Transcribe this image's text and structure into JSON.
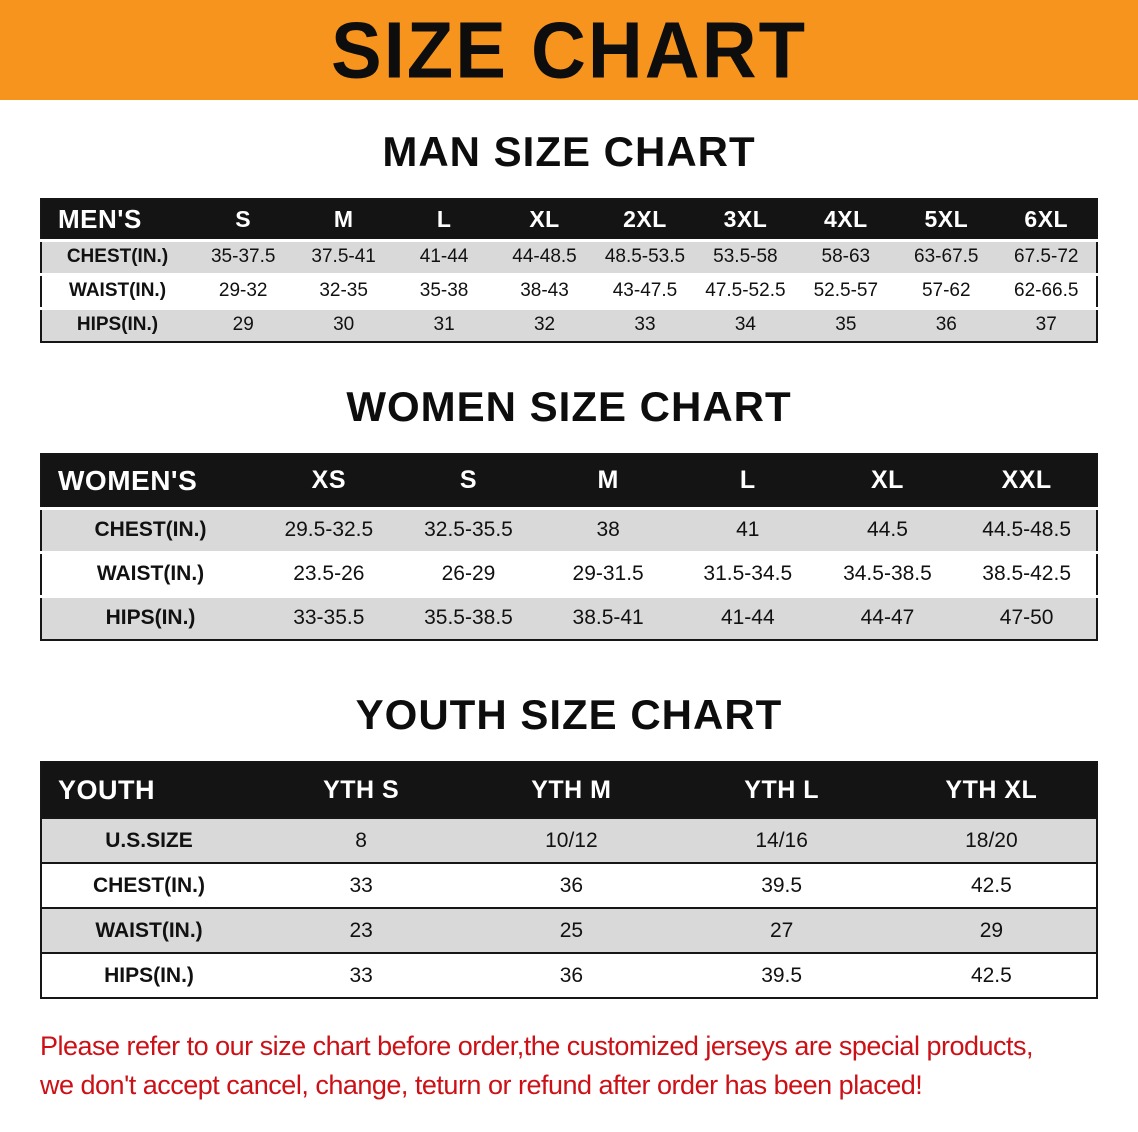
{
  "banner": {
    "title": "SIZE CHART"
  },
  "men": {
    "heading": "MAN SIZE CHART",
    "table": {
      "header": [
        "MEN'S",
        "S",
        "M",
        "L",
        "XL",
        "2XL",
        "3XL",
        "4XL",
        "5XL",
        "6XL"
      ],
      "rows": [
        [
          "CHEST(IN.)",
          "35-37.5",
          "37.5-41",
          "41-44",
          "44-48.5",
          "48.5-53.5",
          "53.5-58",
          "58-63",
          "63-67.5",
          "67.5-72"
        ],
        [
          "WAIST(IN.)",
          "29-32",
          "32-35",
          "35-38",
          "38-43",
          "43-47.5",
          "47.5-52.5",
          "52.5-57",
          "57-62",
          "62-66.5"
        ],
        [
          "HIPS(IN.)",
          "29",
          "30",
          "31",
          "32",
          "33",
          "34",
          "35",
          "36",
          "37"
        ]
      ]
    }
  },
  "women": {
    "heading": "WOMEN SIZE CHART",
    "table": {
      "header": [
        "WOMEN'S",
        "XS",
        "S",
        "M",
        "L",
        "XL",
        "XXL"
      ],
      "rows": [
        [
          "CHEST(IN.)",
          "29.5-32.5",
          "32.5-35.5",
          "38",
          "41",
          "44.5",
          "44.5-48.5"
        ],
        [
          "WAIST(IN.)",
          "23.5-26",
          "26-29",
          "29-31.5",
          "31.5-34.5",
          "34.5-38.5",
          "38.5-42.5"
        ],
        [
          "HIPS(IN.)",
          "33-35.5",
          "35.5-38.5",
          "38.5-41",
          "41-44",
          "44-47",
          "47-50"
        ]
      ]
    }
  },
  "youth": {
    "heading": "YOUTH SIZE CHART",
    "table": {
      "header": [
        "YOUTH",
        "YTH S",
        "YTH M",
        "YTH L",
        "YTH XL"
      ],
      "rows": [
        [
          "U.S.SIZE",
          "8",
          "10/12",
          "14/16",
          "18/20"
        ],
        [
          "CHEST(IN.)",
          "33",
          "36",
          "39.5",
          "42.5"
        ],
        [
          "WAIST(IN.)",
          "23",
          "25",
          "27",
          "29"
        ],
        [
          "HIPS(IN.)",
          "33",
          "36",
          "39.5",
          "42.5"
        ]
      ]
    }
  },
  "footer": {
    "line1": "Please refer to our size chart before order,the customized jerseys are special products,",
    "line2": "we don't accept cancel, change, teturn or refund after order has been placed!"
  },
  "colors": {
    "banner_bg": "#f7941d",
    "header_bg": "#141414",
    "row_alt_bg": "#d9d9d9",
    "note_red": "#cc1016"
  }
}
